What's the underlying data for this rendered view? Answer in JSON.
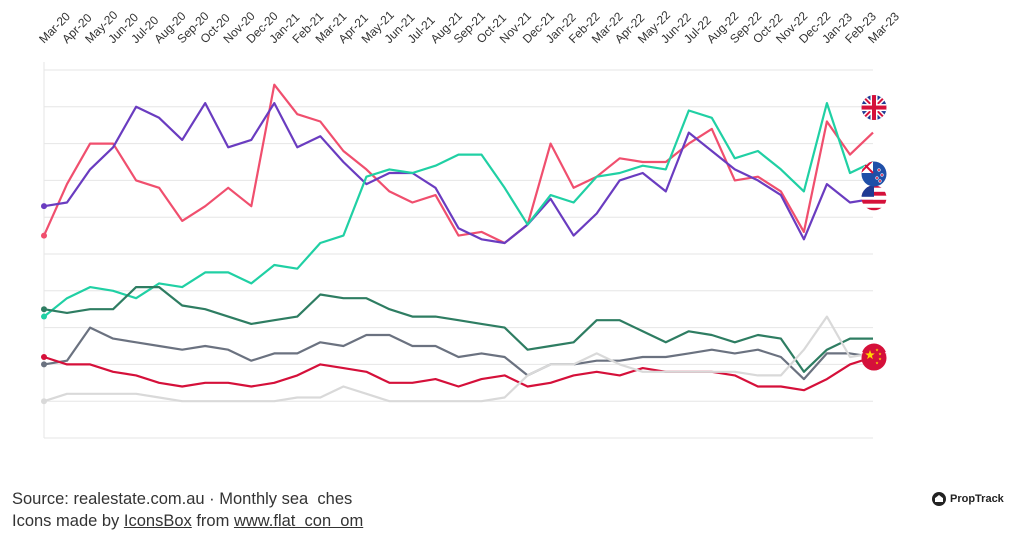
{
  "chart_data": {
    "type": "line",
    "categories": [
      "Mar-20",
      "Apr-20",
      "May-20",
      "Jun-20",
      "Jul-20",
      "Aug-20",
      "Sep-20",
      "Oct-20",
      "Nov-20",
      "Dec-20",
      "Jan-21",
      "Feb-21",
      "Mar-21",
      "Apr-21",
      "May-21",
      "Jun-21",
      "Jul-21",
      "Aug-21",
      "Sep-21",
      "Oct-21",
      "Nov-21",
      "Dec-21",
      "Jan-22",
      "Feb-22",
      "Mar-22",
      "Apr-22",
      "May-22",
      "Jun-22",
      "Jul-22",
      "Aug-22",
      "Sep-22",
      "Oct-22",
      "Nov-22",
      "Dec-22",
      "Jan-23",
      "Feb-23",
      "Mar-23"
    ],
    "ylim": [
      0,
      100
    ],
    "grid": true,
    "series": [
      {
        "color": "#f04f6e",
        "icon": "uk-flag-icon",
        "values": [
          55,
          69,
          80,
          80,
          70,
          68,
          59,
          63,
          68,
          63,
          96,
          88,
          86,
          78,
          73,
          67,
          64,
          66,
          55,
          56,
          53,
          58,
          80,
          68,
          71,
          76,
          75,
          75,
          80,
          84,
          70,
          71,
          67,
          56,
          86,
          77,
          83
        ]
      },
      {
        "color": "#6a3cc0",
        "icon": "us-flag-icon",
        "values": [
          63,
          64,
          73,
          79,
          90,
          87,
          81,
          91,
          79,
          81,
          91,
          79,
          82,
          75,
          69,
          72,
          72,
          68,
          57,
          54,
          53,
          58,
          65,
          55,
          61,
          70,
          72,
          67,
          83,
          78,
          73,
          70,
          66,
          54,
          69,
          64,
          65
        ]
      },
      {
        "color": "#20d0a4",
        "icon": "nz-flag-icon",
        "values": [
          33,
          38,
          41,
          40,
          38,
          42,
          41,
          45,
          45,
          42,
          47,
          46,
          53,
          55,
          71,
          73,
          72,
          74,
          77,
          77,
          68,
          58,
          66,
          64,
          71,
          72,
          74,
          73,
          89,
          87,
          76,
          78,
          73,
          67,
          91,
          72,
          75
        ]
      },
      {
        "color": "#2e7d62",
        "icon": "india-flag-icon",
        "values": [
          35,
          34,
          35,
          35,
          41,
          41,
          36,
          35,
          33,
          31,
          32,
          33,
          39,
          38,
          38,
          35,
          33,
          33,
          32,
          31,
          30,
          24,
          25,
          26,
          32,
          32,
          29,
          26,
          29,
          28,
          26,
          28,
          27,
          18,
          24,
          27,
          27
        ]
      },
      {
        "color": "#6b7280",
        "icon": "flag-icon",
        "values": [
          20,
          21,
          30,
          27,
          26,
          25,
          24,
          25,
          24,
          21,
          23,
          23,
          26,
          25,
          28,
          28,
          25,
          25,
          22,
          23,
          22,
          17,
          20,
          20,
          21,
          21,
          22,
          22,
          23,
          24,
          23,
          24,
          22,
          16,
          23,
          23,
          22
        ]
      },
      {
        "color": "#d5103a",
        "icon": "china-flag-icon",
        "values": [
          22,
          20,
          20,
          18,
          17,
          15,
          14,
          15,
          15,
          14,
          15,
          17,
          20,
          19,
          18,
          15,
          15,
          16,
          14,
          16,
          17,
          14,
          15,
          17,
          18,
          17,
          19,
          18,
          18,
          18,
          17,
          14,
          14,
          13,
          16,
          20,
          22
        ]
      },
      {
        "color": "#d9d9d9",
        "icon": "",
        "values": [
          10,
          12,
          12,
          12,
          12,
          11,
          10,
          10,
          10,
          10,
          10,
          11,
          11,
          14,
          12,
          10,
          10,
          10,
          10,
          10,
          11,
          17,
          20,
          20,
          23,
          20,
          18,
          18,
          18,
          18,
          18,
          17,
          17,
          24,
          33,
          22,
          23
        ]
      }
    ]
  },
  "footer": {
    "source_line": "Source: realestate.com.au · Monthly sea  ches",
    "icons_prefix": "Icons made by ",
    "icons_author": "IconsBox",
    "icons_middle": " from ",
    "icons_site": "www.flat  con  om"
  },
  "brand": {
    "name": "PropTrack"
  }
}
